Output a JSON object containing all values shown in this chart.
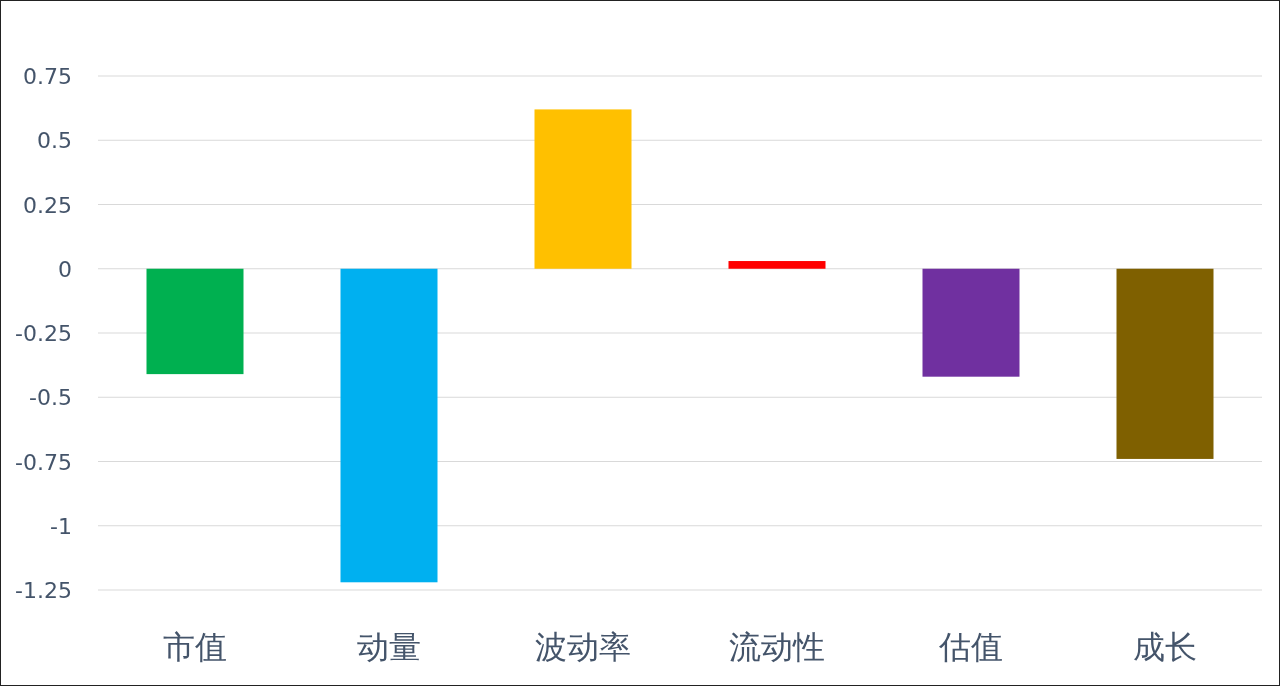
{
  "chart_data": {
    "type": "bar",
    "categories": [
      "市值",
      "动量",
      "波动率",
      "流动性",
      "估值",
      "成长"
    ],
    "values": [
      -0.41,
      -1.22,
      0.62,
      0.03,
      -0.42,
      -0.74
    ],
    "colors": [
      "#00b050",
      "#00b0f0",
      "#ffc000",
      "#ff0000",
      "#7030a0",
      "#7f6000"
    ],
    "ylim": [
      -1.25,
      0.75
    ],
    "yticks": [
      -1.25,
      -1,
      -0.75,
      -0.5,
      -0.25,
      0,
      0.25,
      0.5,
      0.75
    ],
    "grid": "y"
  }
}
